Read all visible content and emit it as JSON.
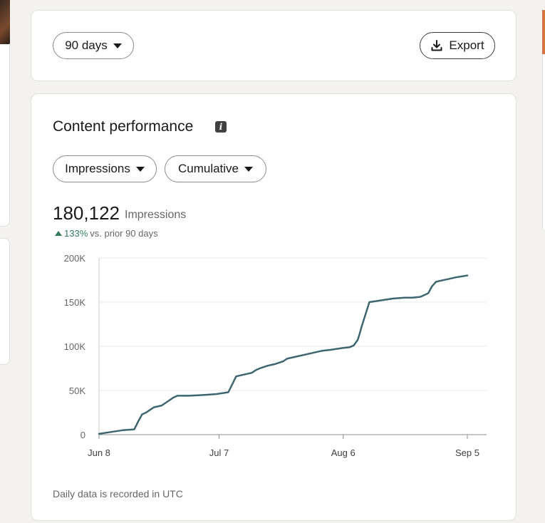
{
  "toolbar": {
    "range_label": "90 days",
    "export_label": "Export"
  },
  "panel": {
    "title": "Content performance",
    "metric_select": "Impressions",
    "mode_select": "Cumulative",
    "total_value": "180,122",
    "total_unit": "Impressions",
    "delta_pct": "133%",
    "delta_text": "vs. prior 90 days",
    "footer_note": "Daily data is recorded in UTC"
  },
  "colors": {
    "line": "#3d6670",
    "grid": "#e8e8e8",
    "positive": "#2f7d5b"
  },
  "chart_data": {
    "type": "line",
    "title": "",
    "xlabel": "",
    "ylabel": "",
    "ylim": [
      0,
      200000
    ],
    "yticks": [
      "0",
      "50K",
      "100K",
      "150K",
      "200K"
    ],
    "xticks": [
      "Jun 8",
      "Jul 7",
      "Aug 6",
      "Sep 5"
    ],
    "x": [
      0,
      3,
      6,
      9,
      10,
      11,
      12,
      13,
      14,
      16,
      17,
      18,
      19,
      20,
      23,
      27,
      30,
      33,
      35,
      39,
      40,
      41,
      43,
      45,
      47,
      48,
      50,
      53,
      55,
      57,
      59,
      62,
      64,
      65,
      66,
      66.5,
      67,
      69,
      72,
      75,
      78,
      80,
      82,
      83,
      84,
      85,
      86,
      87,
      89,
      91,
      94
    ],
    "series": [
      {
        "name": "",
        "values": [
          1000,
          3000,
          5000,
          6000,
          15000,
          23000,
          25000,
          28000,
          31000,
          33000,
          36000,
          39000,
          42000,
          44000,
          44000,
          45000,
          46000,
          48000,
          66000,
          70000,
          73000,
          75000,
          78000,
          80000,
          83000,
          86000,
          88000,
          91000,
          93000,
          95000,
          96000,
          98000,
          99000,
          101000,
          107000,
          114000,
          122000,
          150000,
          152000,
          154000,
          155000,
          155000,
          156000,
          158000,
          160000,
          168000,
          173000,
          174000,
          176000,
          178000,
          180122
        ]
      }
    ]
  }
}
